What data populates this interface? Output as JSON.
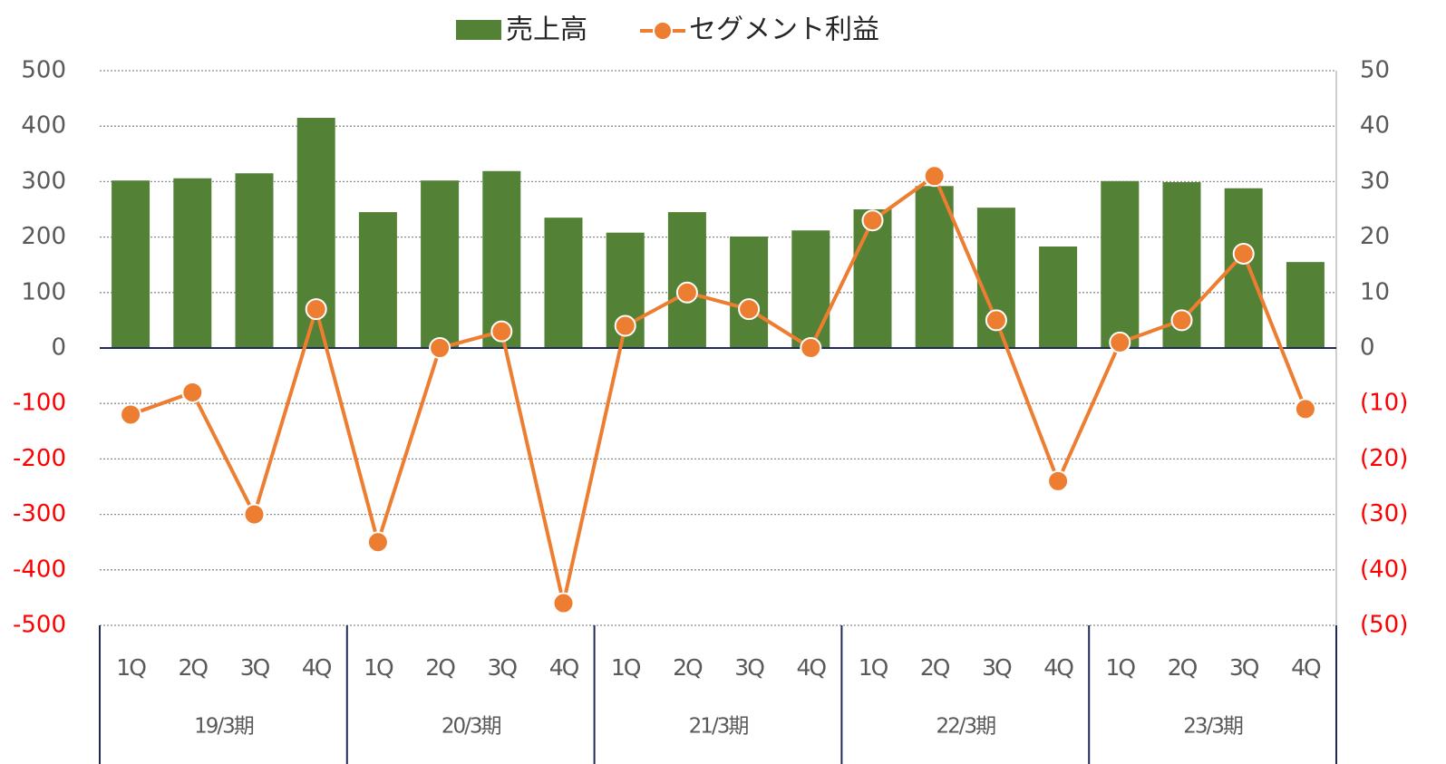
{
  "chart_data": {
    "type": "bar_line",
    "category_groups": [
      {
        "name": "19/3期",
        "categories": [
          "1Q",
          "2Q",
          "3Q",
          "4Q"
        ]
      },
      {
        "name": "20/3期",
        "categories": [
          "1Q",
          "2Q",
          "3Q",
          "4Q"
        ]
      },
      {
        "name": "21/3期",
        "categories": [
          "1Q",
          "2Q",
          "3Q",
          "4Q"
        ]
      },
      {
        "name": "22/3期",
        "categories": [
          "1Q",
          "2Q",
          "3Q",
          "4Q"
        ]
      },
      {
        "name": "23/3期",
        "categories": [
          "1Q",
          "2Q",
          "3Q",
          "4Q"
        ]
      }
    ],
    "series": [
      {
        "name": "売上高",
        "type": "bar",
        "color": "#538135",
        "axis": "y",
        "values": [
          302,
          306,
          315,
          415,
          245,
          302,
          319,
          235,
          208,
          245,
          201,
          212,
          250,
          292,
          253,
          183,
          301,
          299,
          288,
          155
        ]
      },
      {
        "name": "セグメント利益",
        "type": "line",
        "color": "#ed7d31",
        "axis": "y2",
        "values": [
          -12,
          -8,
          -30,
          7,
          -35,
          0,
          3,
          -46,
          4,
          10,
          7,
          0,
          23,
          31,
          5,
          -24,
          1,
          5,
          17,
          -11
        ]
      }
    ],
    "ylim": [
      -500,
      500
    ],
    "yticks": [
      500,
      400,
      300,
      200,
      100,
      0,
      -100,
      -200,
      -300,
      -400,
      -500
    ],
    "y2lim": [
      -50,
      50
    ],
    "y2ticks": [
      50,
      40,
      30,
      20,
      10,
      0,
      {
        "value": -10,
        "label": "(10)"
      },
      {
        "value": -20,
        "label": "(20)"
      },
      {
        "value": -30,
        "label": "(30)"
      },
      {
        "value": -40,
        "label": "(40)"
      },
      {
        "value": -50,
        "label": "(50)"
      }
    ],
    "negative_tick_color": "#ff0000",
    "grid": true,
    "legend": "top"
  }
}
